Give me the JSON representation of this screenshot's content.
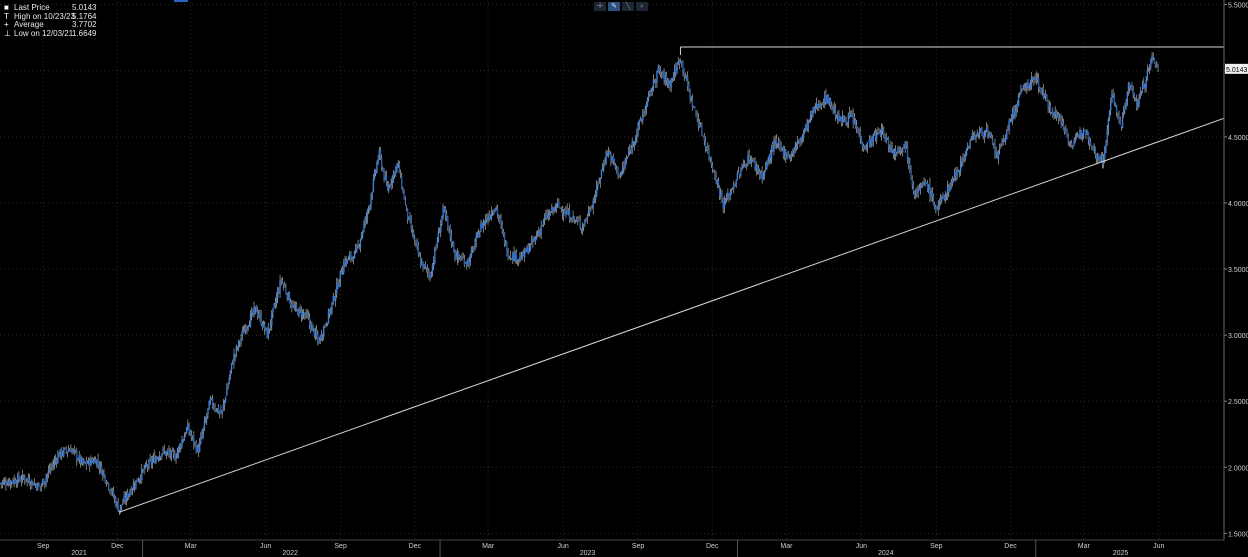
{
  "legend": [
    {
      "key": "■",
      "label": "Last Price",
      "value": "5.0143"
    },
    {
      "key": "T",
      "label": "High on 10/23/23",
      "value": "5.1764"
    },
    {
      "key": "+",
      "label": "Average",
      "value": "3.7702"
    },
    {
      "key": "⊥",
      "label": "Low on 12/03/21",
      "value": "1.6649"
    }
  ],
  "toolbar": {
    "icons": [
      "crosshair-icon",
      "pencil-icon",
      "trendline-icon",
      "zoom-icon"
    ],
    "glyphs": [
      "✛",
      "✎",
      "╲",
      "⌕"
    ]
  },
  "colors": {
    "background": "#000000",
    "candle": "#3d7fd9",
    "wick": "#c8c8c8",
    "line": "#d9d9d9",
    "grid": "#2b2b2b",
    "tag_bg": "#f0f0f0",
    "tag_text": "#000000"
  },
  "chart_data": {
    "type": "candlestick",
    "last_price_tag": "5.0143",
    "y_axis": {
      "min": 1.45,
      "max": 5.52,
      "ticks": [
        "5.5000",
        "5.0000",
        "4.5000",
        "4.0000",
        "3.5000",
        "3.0000",
        "2.5000",
        "2.0000",
        "1.5000"
      ],
      "tick_values": [
        5.5,
        5.0,
        4.5,
        4.0,
        3.5,
        3.0,
        2.5,
        2.0,
        1.5
      ]
    },
    "x_axis": {
      "months": [
        "Sep",
        "Dec",
        "Mar",
        "Jun",
        "Sep",
        "Dec",
        "Mar",
        "Jun",
        "Sep",
        "Dec",
        "Mar",
        "Jun",
        "Sep",
        "Dec",
        "Mar",
        "Jun"
      ],
      "month_dates": [
        "2021-09-01",
        "2021-12-01",
        "2022-03-01",
        "2022-06-01",
        "2022-09-01",
        "2022-12-01",
        "2023-03-01",
        "2023-06-01",
        "2023-09-01",
        "2023-12-01",
        "2024-03-01",
        "2024-06-01",
        "2024-09-01",
        "2024-12-01",
        "2025-03-01",
        "2025-06-01"
      ],
      "years": [
        "2021",
        "2022",
        "2023",
        "2024",
        "2025"
      ],
      "year_dates": [
        "2021-10-15",
        "2022-07-01",
        "2023-07-01",
        "2024-07-01",
        "2025-04-15"
      ],
      "range": [
        "2021-07-10",
        "2025-08-20"
      ]
    },
    "grid": true,
    "price_path": [
      [
        "2021-07-10",
        1.88
      ],
      [
        "2021-08-10",
        1.92
      ],
      [
        "2021-08-28",
        1.85
      ],
      [
        "2021-09-20",
        2.1
      ],
      [
        "2021-10-05",
        2.14
      ],
      [
        "2021-10-20",
        2.02
      ],
      [
        "2021-11-05",
        2.06
      ],
      [
        "2021-11-18",
        1.9
      ],
      [
        "2021-12-03",
        1.68
      ],
      [
        "2021-12-18",
        1.84
      ],
      [
        "2022-01-05",
        2.0
      ],
      [
        "2022-01-25",
        2.12
      ],
      [
        "2022-02-10",
        2.08
      ],
      [
        "2022-02-25",
        2.3
      ],
      [
        "2022-03-10",
        2.12
      ],
      [
        "2022-03-25",
        2.5
      ],
      [
        "2022-04-08",
        2.4
      ],
      [
        "2022-04-22",
        2.82
      ],
      [
        "2022-05-06",
        3.05
      ],
      [
        "2022-05-20",
        3.2
      ],
      [
        "2022-06-03",
        3.0
      ],
      [
        "2022-06-20",
        3.42
      ],
      [
        "2022-07-05",
        3.2
      ],
      [
        "2022-07-20",
        3.15
      ],
      [
        "2022-08-05",
        2.95
      ],
      [
        "2022-08-20",
        3.2
      ],
      [
        "2022-09-05",
        3.55
      ],
      [
        "2022-09-20",
        3.62
      ],
      [
        "2022-10-05",
        3.95
      ],
      [
        "2022-10-18",
        4.38
      ],
      [
        "2022-10-28",
        4.1
      ],
      [
        "2022-11-10",
        4.3
      ],
      [
        "2022-11-22",
        3.9
      ],
      [
        "2022-12-08",
        3.55
      ],
      [
        "2022-12-20",
        3.45
      ],
      [
        "2023-01-05",
        3.95
      ],
      [
        "2023-01-20",
        3.6
      ],
      [
        "2023-02-05",
        3.55
      ],
      [
        "2023-02-20",
        3.82
      ],
      [
        "2023-03-10",
        3.98
      ],
      [
        "2023-03-25",
        3.62
      ],
      [
        "2023-04-10",
        3.58
      ],
      [
        "2023-04-25",
        3.7
      ],
      [
        "2023-05-10",
        3.88
      ],
      [
        "2023-05-25",
        3.98
      ],
      [
        "2023-06-10",
        3.9
      ],
      [
        "2023-06-25",
        3.82
      ],
      [
        "2023-07-10",
        4.05
      ],
      [
        "2023-07-25",
        4.4
      ],
      [
        "2023-08-10",
        4.2
      ],
      [
        "2023-08-25",
        4.45
      ],
      [
        "2023-09-10",
        4.72
      ],
      [
        "2023-09-25",
        5.0
      ],
      [
        "2023-10-10",
        4.9
      ],
      [
        "2023-10-23",
        5.1
      ],
      [
        "2023-11-05",
        4.78
      ],
      [
        "2023-11-20",
        4.5
      ],
      [
        "2023-12-05",
        4.2
      ],
      [
        "2023-12-15",
        3.98
      ],
      [
        "2024-01-01",
        4.2
      ],
      [
        "2024-01-15",
        4.35
      ],
      [
        "2024-02-01",
        4.2
      ],
      [
        "2024-02-15",
        4.45
      ],
      [
        "2024-03-05",
        4.35
      ],
      [
        "2024-03-20",
        4.5
      ],
      [
        "2024-04-05",
        4.72
      ],
      [
        "2024-04-20",
        4.8
      ],
      [
        "2024-05-05",
        4.62
      ],
      [
        "2024-05-20",
        4.65
      ],
      [
        "2024-06-05",
        4.42
      ],
      [
        "2024-06-25",
        4.55
      ],
      [
        "2024-07-10",
        4.38
      ],
      [
        "2024-07-25",
        4.45
      ],
      [
        "2024-08-05",
        4.08
      ],
      [
        "2024-08-20",
        4.15
      ],
      [
        "2024-09-01",
        3.95
      ],
      [
        "2024-09-15",
        4.1
      ],
      [
        "2024-10-01",
        4.3
      ],
      [
        "2024-10-15",
        4.5
      ],
      [
        "2024-11-01",
        4.55
      ],
      [
        "2024-11-15",
        4.35
      ],
      [
        "2024-12-01",
        4.62
      ],
      [
        "2024-12-15",
        4.85
      ],
      [
        "2025-01-01",
        4.95
      ],
      [
        "2025-01-15",
        4.75
      ],
      [
        "2025-02-01",
        4.62
      ],
      [
        "2025-02-15",
        4.42
      ],
      [
        "2025-03-01",
        4.58
      ],
      [
        "2025-03-15",
        4.38
      ],
      [
        "2025-03-25",
        4.32
      ],
      [
        "2025-04-05",
        4.85
      ],
      [
        "2025-04-15",
        4.55
      ],
      [
        "2025-04-25",
        4.9
      ],
      [
        "2025-05-05",
        4.75
      ],
      [
        "2025-05-15",
        4.92
      ],
      [
        "2025-05-24",
        5.1
      ],
      [
        "2025-06-01",
        5.01
      ]
    ],
    "annotations": [
      {
        "name": "uptrend-line",
        "from": [
          "2021-12-03",
          1.66
        ],
        "to": [
          "2025-08-20",
          4.64
        ]
      },
      {
        "name": "resistance-line",
        "from": [
          "2023-10-23",
          5.18
        ],
        "to": [
          "2025-08-20",
          5.18
        ]
      }
    ]
  }
}
